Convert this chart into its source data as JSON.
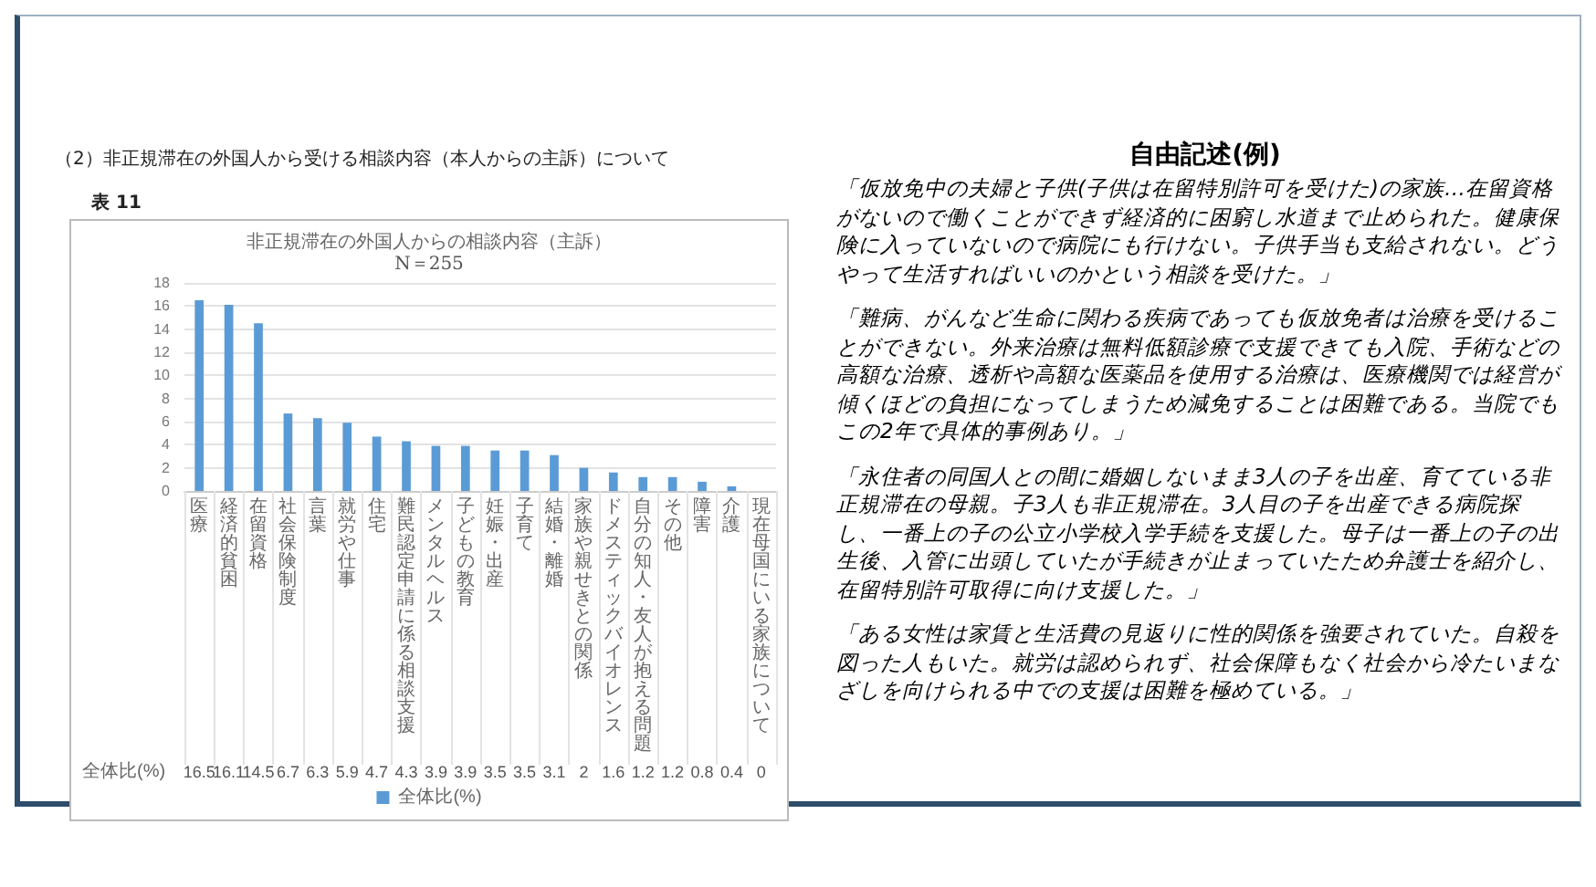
{
  "chart_data": {
    "type": "bar",
    "title": "非正規滞在の外国人からの相談内容（主訴）",
    "subtitle": "N＝255",
    "categories": [
      "医療",
      "経済的貧困",
      "在留資格",
      "社会保険制度",
      "言葉",
      "就労や仕事",
      "住宅",
      "難民認定申請に係る相談支援",
      "メンタルヘルス",
      "子どもの教育",
      "妊娠・出産",
      "子育て",
      "結婚・離婚",
      "家族や親せきとの関係",
      "ドメスティックバイオレンス",
      "自分の知人・友人が抱える問題",
      "その他",
      "障害",
      "介護",
      "現在母国にいる家族について"
    ],
    "series": [
      {
        "name": "全体比(%)",
        "color": "#5b9bd5",
        "values": [
          16.5,
          16.1,
          14.5,
          6.7,
          6.3,
          5.9,
          4.7,
          4.3,
          3.9,
          3.9,
          3.5,
          3.5,
          3.1,
          2,
          1.6,
          1.2,
          1.2,
          0.8,
          0.4,
          0
        ]
      }
    ],
    "ylim": [
      0,
      18
    ],
    "yticks": [
      0,
      2,
      4,
      6,
      8,
      10,
      12,
      14,
      16,
      18
    ],
    "grid": "y",
    "legend": "bottom",
    "data_labels": true,
    "annotations": [
      "（2）非正規滞在の外国人から受ける相談内容（本人からの主訴）について",
      "表 11",
      "自由記述(例)",
      "「仮放免中の夫婦と子供(子供は在留特別許可を受けた)の家族…在留資格がないので働くことができず経済的に困窮し水道まで止められた。健康保険に入っていないので病院にも行けない。子供手当も支給されない。どうやって生活すればいいのかという相談を受けた。」",
      "「難病、がんなど生命に関わる疾病であっても仮放免者は治療を受けることができない。外来治療は無料低額診療で支援できても入院、手術などの高額な治療、透析や高額な医薬品を使用する治療は、医療機関では経営が傾くほどの負担になってしまうため減免することは困難である。当院でもこの2年で具体的事例あり。」",
      "「永住者の同国人との間に婚姻しないまま3人の子を出産、育てている非正規滞在の母親。子3人も非正規滞在。3人目の子を出産できる病院探し、一番上の子の公立小学校入学手続を支援した。母子は一番上の子の出生後、入管に出頭していたが手続きが止まっていたため弁護士を紹介し、在留特別許可取得に向け支援した。」",
      "「ある女性は家賃と生活費の見返りに性的関係を強要されていた。自殺を図った人もいた。就労は認められず、社会保障もなく社会から冷たいまなざしを向けられる中での支援は困難を極めている。」"
    ]
  }
}
